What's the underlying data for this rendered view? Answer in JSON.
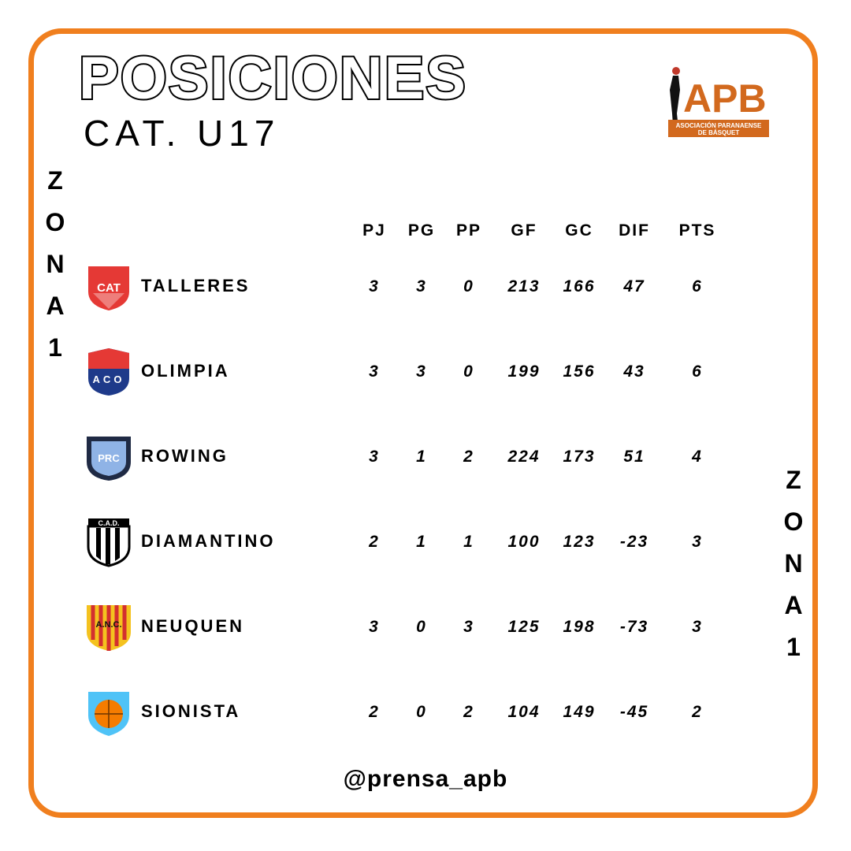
{
  "header": {
    "title": "POSICIONES",
    "subtitle": "CAT. U17"
  },
  "zona_label": [
    "Z",
    "O",
    "N",
    "A",
    "1"
  ],
  "brand": {
    "logo_text": "APB",
    "logo_subtext_1": "ASOCIACIÓN PARANAENSE",
    "logo_subtext_2": "DE BÁSQUET",
    "accent": "#F07F1E",
    "logo_color": "#D2691E"
  },
  "columns": [
    "PJ",
    "PG",
    "PP",
    "GF",
    "GC",
    "DIF",
    "PTS"
  ],
  "rows": [
    {
      "team": "TALLERES",
      "logo": "CAT",
      "cells": [
        "3",
        "3",
        "0",
        "213",
        "166",
        "47",
        "6"
      ]
    },
    {
      "team": "OLIMPIA",
      "logo": "ACO",
      "cells": [
        "3",
        "3",
        "0",
        "199",
        "156",
        "43",
        "6"
      ]
    },
    {
      "team": "ROWING",
      "logo": "PRC",
      "cells": [
        "3",
        "1",
        "2",
        "224",
        "173",
        "51",
        "4"
      ]
    },
    {
      "team": "DIAMANTINO",
      "logo": "C.A.D.",
      "cells": [
        "2",
        "1",
        "1",
        "100",
        "123",
        "-23",
        "3"
      ]
    },
    {
      "team": "NEUQUEN",
      "logo": "A.N.C.",
      "cells": [
        "3",
        "0",
        "3",
        "125",
        "198",
        "-73",
        "3"
      ]
    },
    {
      "team": "SIONISTA",
      "logo": "",
      "cells": [
        "2",
        "0",
        "2",
        "104",
        "149",
        "-45",
        "2"
      ]
    }
  ],
  "footer": {
    "handle": "@prensa_apb"
  }
}
